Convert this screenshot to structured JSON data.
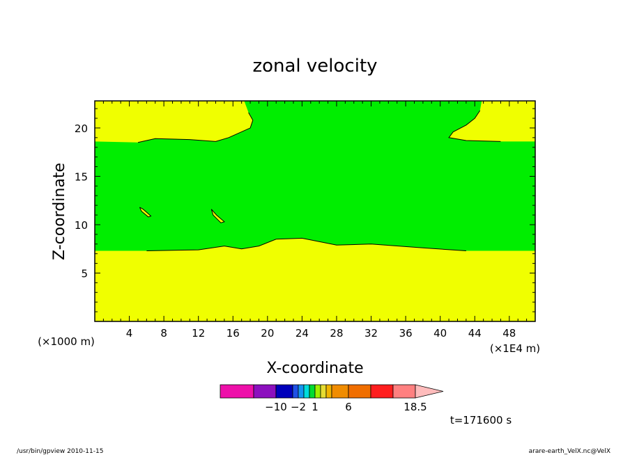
{
  "chart_data": {
    "type": "heatmap",
    "title": "zonal velocity",
    "xlabel": "X-coordinate",
    "ylabel": "Z-coordinate",
    "x_scale_label": "(×1E4 m)",
    "y_scale_label": "(×1000 m)",
    "xlim": [
      0,
      51
    ],
    "ylim": [
      0,
      22.8
    ],
    "x_ticks": [
      4,
      8,
      12,
      16,
      20,
      24,
      28,
      32,
      36,
      40,
      44,
      48
    ],
    "y_ticks": [
      5,
      10,
      15,
      20
    ],
    "fill_colors": {
      "low": "#f0ff00",
      "mid": "#00ee00"
    },
    "regions": [
      {
        "level": "low",
        "name": "lower-band",
        "points": [
          [
            0,
            0
          ],
          [
            51,
            0
          ],
          [
            51,
            7.3
          ],
          [
            43,
            7.3
          ],
          [
            38,
            7.6
          ],
          [
            32,
            8.0
          ],
          [
            28,
            7.9
          ],
          [
            24,
            8.6
          ],
          [
            21,
            8.5
          ],
          [
            19,
            7.8
          ],
          [
            17,
            7.5
          ],
          [
            15,
            7.8
          ],
          [
            12,
            7.4
          ],
          [
            6,
            7.3
          ],
          [
            0,
            7.3
          ]
        ]
      },
      {
        "level": "low",
        "name": "upper-left-cap",
        "points": [
          [
            0,
            18.6
          ],
          [
            5,
            18.5
          ],
          [
            7,
            18.9
          ],
          [
            11,
            18.8
          ],
          [
            14,
            18.6
          ],
          [
            15.5,
            19.0
          ],
          [
            18,
            20.0
          ],
          [
            18.3,
            20.8
          ],
          [
            17.8,
            21.6
          ],
          [
            17.3,
            22.8
          ],
          [
            0,
            22.8
          ]
        ]
      },
      {
        "level": "low",
        "name": "upper-right-cap",
        "points": [
          [
            51,
            18.6
          ],
          [
            47,
            18.6
          ],
          [
            43,
            18.7
          ],
          [
            41,
            19.0
          ],
          [
            41.5,
            19.6
          ],
          [
            43,
            20.3
          ],
          [
            44,
            21.0
          ],
          [
            44.6,
            21.8
          ],
          [
            44.8,
            22.8
          ],
          [
            51,
            22.8
          ]
        ]
      },
      {
        "level": "low",
        "name": "small-patch-1",
        "points": [
          [
            5.2,
            11.8
          ],
          [
            5.6,
            11.6
          ],
          [
            6.5,
            10.9
          ],
          [
            6.2,
            10.8
          ],
          [
            5.4,
            11.4
          ]
        ]
      },
      {
        "level": "low",
        "name": "small-patch-2",
        "points": [
          [
            13.5,
            11.6
          ],
          [
            14.1,
            11.0
          ],
          [
            15.0,
            10.3
          ],
          [
            14.6,
            10.2
          ],
          [
            13.7,
            11.0
          ]
        ]
      }
    ],
    "colorbar": {
      "colors": [
        "#ee10aa",
        "#8c10be",
        "#0000bb",
        "#1e50e6",
        "#1496f0",
        "#00dcdc",
        "#00dc32",
        "#a0f000",
        "#e6dc32",
        "#f0b400",
        "#f08c00",
        "#f06e00",
        "#ff1e1e",
        "#ff8080",
        "#ffbcbc"
      ],
      "widths": [
        6,
        4,
        3,
        1,
        1,
        1,
        1,
        1,
        1,
        1,
        3,
        4,
        4,
        4
      ],
      "labels": [
        {
          "text": "−10",
          "boundary": 2
        },
        {
          "text": "−2",
          "boundary": 4
        },
        {
          "text": "1",
          "boundary": 7
        },
        {
          "text": "6",
          "boundary": 11
        },
        {
          "text": "18.5",
          "boundary": 14
        }
      ],
      "extend": "max",
      "time_label": "t=171600 s"
    }
  },
  "footer": {
    "left": "/usr/bin/gpview  2010-11-15",
    "right": "arare-earth_VelX.nc@VelX"
  }
}
